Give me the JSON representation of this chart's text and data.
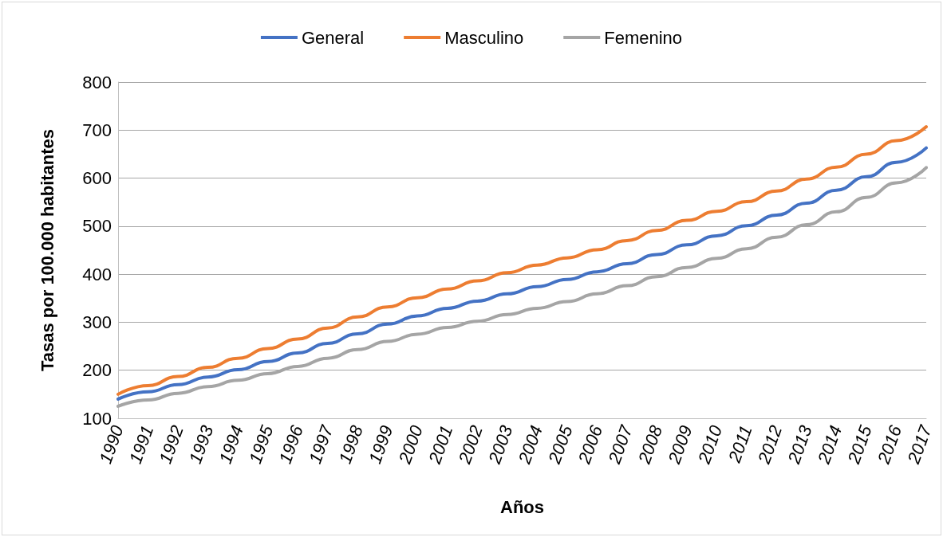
{
  "chart_data": {
    "type": "line",
    "xlabel": "Años",
    "ylabel": "Tasas por 100.000 habitantes",
    "categories": [
      "1990",
      "1991",
      "1992",
      "1993",
      "1994",
      "1995",
      "1996",
      "1997",
      "1998",
      "1999",
      "2000",
      "2001",
      "2002",
      "2003",
      "2004",
      "2005",
      "2006",
      "2007",
      "2008",
      "2009",
      "2010",
      "2011",
      "2012",
      "2013",
      "2014",
      "2015",
      "2016",
      "2017"
    ],
    "series": [
      {
        "name": "General",
        "color": "#4472c4",
        "values": [
          140,
          155,
          170,
          186,
          201,
          218,
          236,
          256,
          276,
          296,
          313,
          329,
          344,
          359,
          374,
          389,
          405,
          422,
          441,
          461,
          480,
          501,
          523,
          548,
          575,
          603,
          633,
          663
        ]
      },
      {
        "name": "Masculino",
        "color": "#ed7d31",
        "values": [
          150,
          168,
          187,
          206,
          225,
          245,
          265,
          288,
          311,
          332,
          351,
          369,
          386,
          403,
          419,
          434,
          451,
          470,
          491,
          512,
          531,
          551,
          573,
          598,
          623,
          650,
          678,
          707
        ]
      },
      {
        "name": "Femenino",
        "color": "#a5a5a5",
        "values": [
          125,
          138,
          152,
          166,
          179,
          193,
          208,
          225,
          243,
          260,
          275,
          289,
          302,
          316,
          329,
          343,
          359,
          376,
          395,
          414,
          433,
          453,
          477,
          503,
          530,
          560,
          590,
          622
        ]
      }
    ],
    "ylim": [
      100,
      800
    ],
    "yticks": [
      100,
      200,
      300,
      400,
      500,
      600,
      700,
      800
    ],
    "grid": "y",
    "legend": "top",
    "marker": "none",
    "line_style": "solid"
  }
}
